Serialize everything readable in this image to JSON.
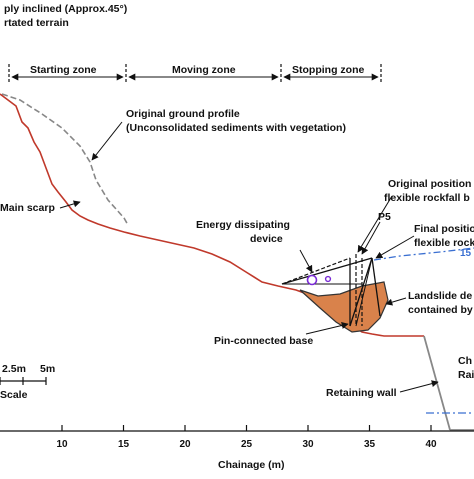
{
  "header": {
    "line1": "ply inclined (Approx.45°)",
    "line2": "rtated terrain"
  },
  "zones": {
    "starting": "Starting zone",
    "moving": "Moving zone",
    "stopping": "Stopping zone"
  },
  "labels": {
    "original_ground_1": "Original ground profile",
    "original_ground_2": "(Unconsolidated sediments with vegetation)",
    "main_scarp": "Main scarp",
    "energy_1": "Energy dissipating",
    "energy_2": "device",
    "original_pos_1": "Original position",
    "original_pos_2": "flexible rockfall b",
    "p5": "P5",
    "final_pos_1": "Final positio",
    "final_pos_2": "flexible rock",
    "angle": "15",
    "landslide_1": "Landslide de",
    "landslide_2": "contained by",
    "pin_base": "Pin-connected base",
    "retaining_wall": "Retaining wall",
    "right_top": "Ch",
    "right_bottom": "Rai"
  },
  "scale": {
    "label_a": "2.5m",
    "label_b": "5m",
    "title": "Scale"
  },
  "axis": {
    "xlabel": "Chainage (m)",
    "ticks": [
      "10",
      "15",
      "20",
      "25",
      "30",
      "35",
      "40"
    ]
  },
  "colors": {
    "slope": "#c0392b",
    "debris": "#d9824b",
    "dash_blue": "#3a6fd1",
    "energy_device": "#7a2bd6"
  }
}
